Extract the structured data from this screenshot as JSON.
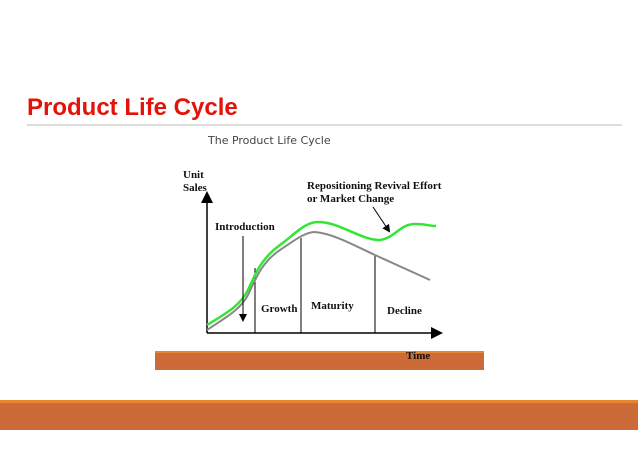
{
  "header": {
    "title": "Product Life Cycle"
  },
  "figure": {
    "caption": "The Product Life Cycle",
    "y_axis_label": [
      "Unit",
      "Sales"
    ],
    "x_axis_label": "Time",
    "annotation": [
      "Repositioning Revival Effort",
      "or Market Change"
    ],
    "stages": [
      "Introduction",
      "Growth",
      "Maturity",
      "Decline"
    ]
  }
}
